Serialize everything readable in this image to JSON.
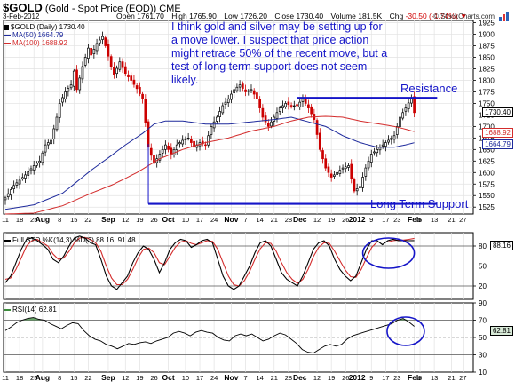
{
  "header": {
    "symbol": "$GOLD",
    "description": "(Gold - Spot Price (EOD))",
    "exchange": "CME",
    "date": "3-Feb-2012",
    "open_label": "Open",
    "open": "1761.70",
    "high_label": "High",
    "high": "1765.90",
    "low_label": "Low",
    "low": "1726.20",
    "close_label": "Close",
    "close": "1730.40",
    "volume_label": "Volume",
    "volume": "181.5K",
    "chg_label": "Chg",
    "chg": "-30.50 (-1.74%)",
    "chg_arrow": "▼",
    "credit": "© StockCharts.com"
  },
  "legends": {
    "price": "$GOLD (Daily) 1730.40",
    "ma50": "MA(50) 1664.79",
    "ma100": "MA(100) 1688.92",
    "sto": "Full STO %K(14,3) %D(3) 88.16, 91.48",
    "rsi": "RSI(14) 62.81"
  },
  "annotations": {
    "note": "I think gold and silver may be setting up for a move lower. I suspect that price action might retrace 50% of the recent move, but a test of long term support does not seem likely.",
    "resistance": "Resistance",
    "support": "Long Term Support"
  },
  "price_tags": {
    "close": "1730.40",
    "ma100": "1688.92",
    "ma50": "1664.79",
    "sto": "88.16",
    "rsi": "62.81"
  },
  "colors": {
    "annotation": "#1515c8",
    "candle_up": "#000000",
    "candle_down": "#cc0000",
    "ma50": "#1e2a9c",
    "ma100": "#d32c2c",
    "sto_k": "#000000",
    "sto_d": "#d32c2c",
    "rsi_fill": "#3c8c3c",
    "rsi_fill_low": "#cc3333"
  },
  "chart_data": [
    {
      "type": "candlestick",
      "title": "$GOLD (Gold - Spot Price (EOD))",
      "ylim": [
        1510,
        1930
      ],
      "y_ticks": [
        1525,
        1550,
        1575,
        1600,
        1625,
        1650,
        1675,
        1700,
        1725,
        1750,
        1775,
        1800,
        1825,
        1850,
        1875,
        1900,
        1925
      ],
      "x_tick_labels": [
        {
          "label": "11",
          "i": 0
        },
        {
          "label": "18",
          "i": 5
        },
        {
          "label": "25",
          "i": 10
        },
        {
          "label": "Aug",
          "i": 13
        },
        {
          "label": "8",
          "i": 19
        },
        {
          "label": "15",
          "i": 24
        },
        {
          "label": "22",
          "i": 29
        },
        {
          "label": "Sep",
          "i": 36
        },
        {
          "label": "12",
          "i": 42
        },
        {
          "label": "19",
          "i": 47
        },
        {
          "label": "26",
          "i": 52
        },
        {
          "label": "Oct",
          "i": 57
        },
        {
          "label": "10",
          "i": 63
        },
        {
          "label": "17",
          "i": 68
        },
        {
          "label": "24",
          "i": 73
        },
        {
          "label": "Nov",
          "i": 79
        },
        {
          "label": "7",
          "i": 84
        },
        {
          "label": "14",
          "i": 89
        },
        {
          "label": "21",
          "i": 94
        },
        {
          "label": "28",
          "i": 99
        },
        {
          "label": "Dec",
          "i": 103
        },
        {
          "label": "12",
          "i": 109
        },
        {
          "label": "19",
          "i": 114
        },
        {
          "label": "26",
          "i": 119
        },
        {
          "label": "2012",
          "i": 123
        },
        {
          "label": "9",
          "i": 128
        },
        {
          "label": "17",
          "i": 133
        },
        {
          "label": "23",
          "i": 137
        },
        {
          "label": "Feb",
          "i": 143
        },
        {
          "label": "6",
          "i": 145
        },
        {
          "label": "13",
          "i": 150
        },
        {
          "label": "21",
          "i": 156
        },
        {
          "label": "27",
          "i": 160
        }
      ],
      "x_count": 164,
      "last_index": 143,
      "series": [
        {
          "name": "$GOLD",
          "kind": "ohlc",
          "anchors": [
            [
              0,
              1545
            ],
            [
              3,
              1572
            ],
            [
              7,
              1595
            ],
            [
              10,
              1615
            ],
            [
              12,
              1625
            ],
            [
              14,
              1660
            ],
            [
              16,
              1670
            ],
            [
              18,
              1720
            ],
            [
              19,
              1750
            ],
            [
              21,
              1775
            ],
            [
              23,
              1790
            ],
            [
              24,
              1820
            ],
            [
              25,
              1780
            ],
            [
              27,
              1830
            ],
            [
              29,
              1870
            ],
            [
              30,
              1855
            ],
            [
              32,
              1880
            ],
            [
              34,
              1895
            ],
            [
              35,
              1875
            ],
            [
              37,
              1830
            ],
            [
              38,
              1812
            ],
            [
              40,
              1840
            ],
            [
              42,
              1815
            ],
            [
              44,
              1800
            ],
            [
              46,
              1782
            ],
            [
              48,
              1760
            ],
            [
              50,
              1655
            ],
            [
              52,
              1620
            ],
            [
              54,
              1640
            ],
            [
              56,
              1660
            ],
            [
              58,
              1640
            ],
            [
              60,
              1660
            ],
            [
              62,
              1670
            ],
            [
              64,
              1675
            ],
            [
              66,
              1655
            ],
            [
              68,
              1665
            ],
            [
              70,
              1660
            ],
            [
              72,
              1700
            ],
            [
              74,
              1720
            ],
            [
              76,
              1745
            ],
            [
              78,
              1760
            ],
            [
              80,
              1780
            ],
            [
              82,
              1790
            ],
            [
              84,
              1775
            ],
            [
              86,
              1780
            ],
            [
              88,
              1760
            ],
            [
              90,
              1720
            ],
            [
              92,
              1700
            ],
            [
              94,
              1720
            ],
            [
              96,
              1740
            ],
            [
              98,
              1750
            ],
            [
              100,
              1745
            ],
            [
              102,
              1745
            ],
            [
              104,
              1760
            ],
            [
              106,
              1740
            ],
            [
              108,
              1715
            ],
            [
              110,
              1650
            ],
            [
              112,
              1610
            ],
            [
              114,
              1590
            ],
            [
              116,
              1600
            ],
            [
              118,
              1610
            ],
            [
              120,
              1615
            ],
            [
              122,
              1560
            ],
            [
              124,
              1570
            ],
            [
              126,
              1610
            ],
            [
              128,
              1640
            ],
            [
              130,
              1650
            ],
            [
              132,
              1660
            ],
            [
              134,
              1670
            ],
            [
              136,
              1680
            ],
            [
              138,
              1720
            ],
            [
              140,
              1740
            ],
            [
              142,
              1762
            ],
            [
              143,
              1730
            ]
          ]
        },
        {
          "name": "MA(50)",
          "kind": "line",
          "anchors": [
            [
              0,
              1520
            ],
            [
              10,
              1530
            ],
            [
              20,
              1555
            ],
            [
              30,
              1605
            ],
            [
              36,
              1632
            ],
            [
              42,
              1660
            ],
            [
              48,
              1685
            ],
            [
              52,
              1705
            ],
            [
              56,
              1712
            ],
            [
              62,
              1712
            ],
            [
              70,
              1705
            ],
            [
              78,
              1705
            ],
            [
              86,
              1710
            ],
            [
              94,
              1715
            ],
            [
              100,
              1720
            ],
            [
              106,
              1710
            ],
            [
              112,
              1700
            ],
            [
              118,
              1680
            ],
            [
              124,
              1665
            ],
            [
              130,
              1655
            ],
            [
              136,
              1655
            ],
            [
              140,
              1660
            ],
            [
              143,
              1664.79
            ]
          ]
        },
        {
          "name": "MA(100)",
          "kind": "line",
          "anchors": [
            [
              0,
              1510
            ],
            [
              10,
              1512
            ],
            [
              20,
              1528
            ],
            [
              30,
              1555
            ],
            [
              38,
              1575
            ],
            [
              46,
              1600
            ],
            [
              54,
              1630
            ],
            [
              62,
              1650
            ],
            [
              70,
              1665
            ],
            [
              78,
              1675
            ],
            [
              86,
              1690
            ],
            [
              94,
              1700
            ],
            [
              100,
              1712
            ],
            [
              106,
              1720
            ],
            [
              112,
              1722
            ],
            [
              118,
              1720
            ],
            [
              124,
              1712
            ],
            [
              130,
              1706
            ],
            [
              136,
              1700
            ],
            [
              140,
              1694
            ],
            [
              143,
              1688.92
            ]
          ]
        }
      ],
      "resistance": {
        "y": 1762,
        "from_i": 102,
        "to_i": 151
      },
      "support": {
        "y": 1532,
        "from_i": 50,
        "to_i": 151,
        "drop_from": {
          "i": 50,
          "y": 1662
        }
      },
      "annotation_arrow": {
        "from_y": 1742,
        "to_y": 1757,
        "i": 143
      }
    },
    {
      "type": "line",
      "title": "Full STO %K(14,3) %D(3)",
      "ylim": [
        0,
        100
      ],
      "y_ticks": [
        20,
        50,
        80
      ],
      "ref_lines": [
        20,
        50,
        80
      ],
      "series": [
        {
          "name": "%K",
          "values": [
            25,
            35,
            55,
            75,
            90,
            92,
            88,
            82,
            75,
            60,
            55,
            65,
            80,
            92,
            95,
            92,
            85,
            82,
            60,
            35,
            20,
            15,
            25,
            35,
            55,
            70,
            80,
            75,
            60,
            40,
            55,
            75,
            85,
            90,
            88,
            78,
            82,
            88,
            90,
            85,
            60,
            35,
            20,
            15,
            20,
            35,
            50,
            70,
            85,
            88,
            80,
            60,
            40,
            30,
            25,
            20,
            35,
            55,
            75,
            85,
            88,
            80,
            60,
            45,
            35,
            28,
            35,
            55,
            75,
            88,
            88,
            82,
            88,
            90,
            88,
            88,
            88,
            88.16
          ]
        },
        {
          "name": "%D",
          "values": [
            30,
            32,
            45,
            62,
            80,
            88,
            90,
            85,
            80,
            68,
            60,
            62,
            72,
            85,
            92,
            93,
            90,
            85,
            72,
            50,
            32,
            22,
            22,
            30,
            45,
            62,
            75,
            77,
            70,
            55,
            52,
            65,
            78,
            86,
            88,
            84,
            82,
            85,
            88,
            87,
            75,
            55,
            35,
            22,
            20,
            28,
            42,
            60,
            76,
            85,
            84,
            72,
            55,
            40,
            30,
            24,
            30,
            45,
            64,
            78,
            85,
            84,
            72,
            58,
            44,
            34,
            33,
            45,
            62,
            78,
            86,
            86,
            86,
            88,
            89,
            89,
            90,
            91.48
          ]
        }
      ]
    },
    {
      "type": "area",
      "title": "RSI(14)",
      "ylim": [
        10,
        90
      ],
      "y_ticks": [
        10,
        30,
        50,
        70,
        90
      ],
      "ref_lines": [
        30,
        50,
        70
      ],
      "series": [
        {
          "name": "RSI(14)",
          "values": [
            58,
            62,
            67,
            70,
            72,
            73,
            71,
            70,
            66,
            63,
            60,
            64,
            67,
            66,
            58,
            52,
            48,
            46,
            42,
            40,
            37,
            40,
            43,
            42,
            44,
            45,
            43,
            46,
            48,
            50,
            55,
            57,
            55,
            52,
            56,
            58,
            56,
            55,
            50,
            47,
            46,
            52,
            54,
            52,
            54,
            50,
            46,
            48,
            52,
            55,
            53,
            48,
            43,
            36,
            33,
            32,
            36,
            40,
            42,
            40,
            42,
            48,
            52,
            54,
            56,
            58,
            60,
            62,
            64,
            66,
            70,
            72,
            68,
            62.81
          ]
        }
      ]
    }
  ]
}
